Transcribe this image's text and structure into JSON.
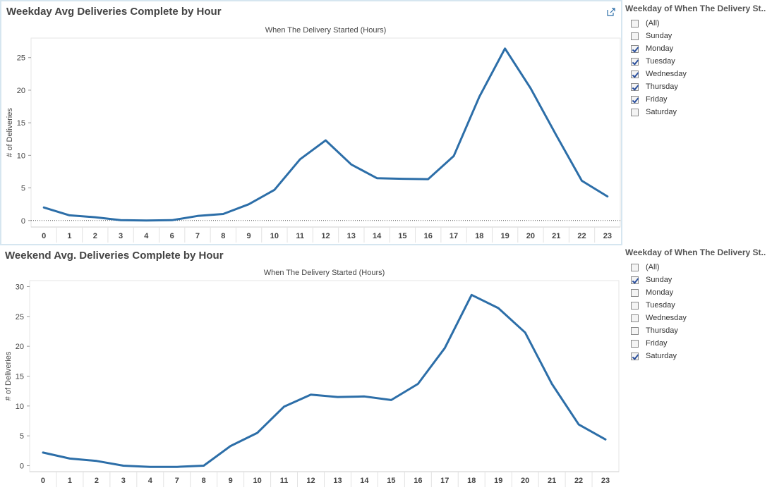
{
  "charts": [
    {
      "title": "Weekday Avg Deliveries Complete by Hour",
      "has_popout": true,
      "icon": "external-link-icon"
    },
    {
      "title": "Weekend Avg. Deliveries Complete by Hour",
      "has_popout": false
    }
  ],
  "chart_data": [
    {
      "type": "line",
      "title": "Weekday Avg Deliveries Complete by Hour",
      "xlabel": "When The Delivery Started (Hours)",
      "ylabel": "# of Deliveries",
      "categories": [
        "0",
        "1",
        "2",
        "3",
        "4",
        "6",
        "7",
        "8",
        "9",
        "10",
        "11",
        "12",
        "13",
        "14",
        "15",
        "16",
        "17",
        "18",
        "19",
        "20",
        "21",
        "22",
        "23"
      ],
      "values": [
        2.0,
        0.8,
        0.5,
        0.05,
        0.0,
        0.05,
        0.7,
        1.0,
        2.5,
        4.7,
        9.4,
        12.3,
        8.6,
        6.5,
        6.4,
        6.35,
        9.9,
        19.0,
        26.4,
        20.3,
        13.1,
        6.1,
        3.7
      ],
      "yticks": [
        0,
        5,
        10,
        15,
        20,
        25
      ],
      "ylim": [
        -1,
        28
      ],
      "zero_line": true,
      "color": "#2c6ea8"
    },
    {
      "type": "line",
      "title": "Weekend Avg. Deliveries Complete by Hour",
      "xlabel": "When The Delivery Started (Hours)",
      "ylabel": "# of Deliveries",
      "categories": [
        "0",
        "1",
        "2",
        "3",
        "4",
        "7",
        "8",
        "9",
        "10",
        "11",
        "12",
        "13",
        "14",
        "15",
        "16",
        "17",
        "18",
        "19",
        "20",
        "21",
        "22",
        "23"
      ],
      "values": [
        2.2,
        1.2,
        0.8,
        0.0,
        -0.2,
        -0.2,
        0.0,
        3.3,
        5.5,
        9.9,
        11.9,
        11.5,
        11.6,
        11.0,
        13.7,
        19.7,
        28.6,
        26.4,
        22.3,
        13.7,
        6.9,
        4.4
      ],
      "yticks": [
        0,
        5,
        10,
        15,
        20,
        25,
        30
      ],
      "ylim": [
        -1,
        31
      ],
      "zero_line": false,
      "color": "#2c6ea8"
    }
  ],
  "filters": [
    {
      "title": "Weekday of When The Delivery St..",
      "items": [
        {
          "label": "(All)",
          "checked": false
        },
        {
          "label": "Sunday",
          "checked": false
        },
        {
          "label": "Monday",
          "checked": true
        },
        {
          "label": "Tuesday",
          "checked": true
        },
        {
          "label": "Wednesday",
          "checked": true
        },
        {
          "label": "Thursday",
          "checked": true
        },
        {
          "label": "Friday",
          "checked": true
        },
        {
          "label": "Saturday",
          "checked": false
        }
      ]
    },
    {
      "title": "Weekday of When The Delivery St..",
      "items": [
        {
          "label": "(All)",
          "checked": false
        },
        {
          "label": "Sunday",
          "checked": true
        },
        {
          "label": "Monday",
          "checked": false
        },
        {
          "label": "Tuesday",
          "checked": false
        },
        {
          "label": "Wednesday",
          "checked": false
        },
        {
          "label": "Thursday",
          "checked": false
        },
        {
          "label": "Friday",
          "checked": false
        },
        {
          "label": "Saturday",
          "checked": true
        }
      ]
    }
  ]
}
